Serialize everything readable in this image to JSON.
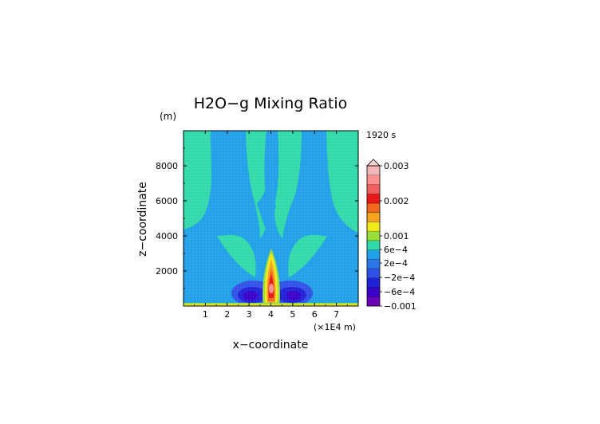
{
  "chart_data": {
    "type": "heatmap",
    "title": "H2O−g Mixing Ratio",
    "time_label": "1920 s",
    "y_unit": "(m)",
    "xlabel": "x−coordinate",
    "ylabel": "z−coordinate",
    "x_scale_label": "(×1E4 m)",
    "xlim": [
      0,
      8
    ],
    "ylim": [
      0,
      10000
    ],
    "x_ticks": [
      "1",
      "2",
      "3",
      "4",
      "5",
      "6",
      "7"
    ],
    "y_ticks": [
      "2000",
      "4000",
      "6000",
      "8000"
    ],
    "x_tick_values": [
      1,
      2,
      3,
      4,
      5,
      6,
      7
    ],
    "y_tick_values": [
      2000,
      4000,
      6000,
      8000
    ],
    "colorbar": {
      "labels": [
        "0.003",
        "0.002",
        "0.001",
        "6e−4",
        "2e−4",
        "−2e−4",
        "−6e−4",
        "−0.001"
      ],
      "label_values": [
        0.003,
        0.002,
        0.001,
        0.0006,
        0.0002,
        -0.0002,
        -0.0006,
        -0.001
      ],
      "colors": [
        "#6a00b8",
        "#3a00c8",
        "#2020d8",
        "#3050e8",
        "#2a78e8",
        "#1fa0e8",
        "#31d9a8",
        "#9ade3c",
        "#f0ea1a",
        "#f5a51d",
        "#ef6a1f",
        "#e81818",
        "#f06060",
        "#ff9090",
        "#f4b6b6"
      ],
      "over_color": "#f7d0d0"
    },
    "field_description": {
      "background_level": "−2e−4 to 2e−4",
      "plume_center_x": 4,
      "plume_max_level": "0.003",
      "minimum_level": "−0.001"
    }
  }
}
